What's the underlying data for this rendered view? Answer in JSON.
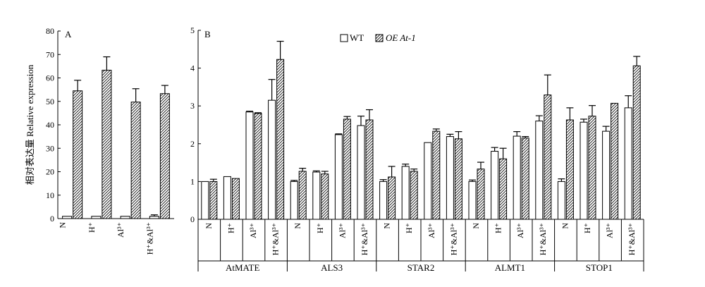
{
  "y_axis_label": "相对表达量 Relative expression",
  "legend": {
    "wt": "WT",
    "oe": "OE At-1"
  },
  "colors": {
    "wt_fill": "#ffffff",
    "oe_hatch": "#000000",
    "axis": "#000000"
  },
  "chart_data": [
    {
      "type": "bar",
      "panel_label": "A",
      "ylim": [
        0,
        80
      ],
      "yticks": [
        "0",
        "10",
        "20",
        "30",
        "40",
        "50",
        "60",
        "70",
        "80"
      ],
      "categories": [
        "N",
        "H⁺",
        "Al³⁺",
        "H⁺&Al³⁺"
      ],
      "series": [
        {
          "name": "WT",
          "values": [
            1,
            1,
            1,
            1
          ],
          "errors": [
            0,
            0,
            0,
            0.6
          ]
        },
        {
          "name": "OE At-1",
          "values": [
            54.5,
            63.3,
            49.7,
            53.3
          ],
          "errors": [
            4.5,
            5.7,
            5.7,
            3.5
          ]
        }
      ],
      "ylabel": "相对表达量 Relative expression",
      "grid": false
    },
    {
      "type": "bar",
      "panel_label": "B",
      "ylim": [
        0,
        5
      ],
      "yticks": [
        "0",
        "1",
        "2",
        "3",
        "4",
        "5"
      ],
      "groups": [
        "AtMATE",
        "ALS3",
        "STAR2",
        "ALMT1",
        "STOP1"
      ],
      "categories": [
        "N",
        "H⁺",
        "Al³⁺",
        "H⁺&Al³⁺"
      ],
      "series": [
        {
          "name": "WT",
          "values": [
            [
              1.0,
              1.13,
              2.84,
              3.15
            ],
            [
              1.0,
              1.25,
              2.24,
              2.48
            ],
            [
              1.0,
              1.4,
              2.03,
              2.19
            ],
            [
              1.0,
              1.8,
              2.2,
              2.6
            ],
            [
              1.0,
              2.57,
              2.33,
              2.95
            ]
          ],
          "errors": [
            [
              0,
              0,
              0.02,
              0.55
            ],
            [
              0.03,
              0.03,
              0.02,
              0.25
            ],
            [
              0.05,
              0.06,
              0,
              0.06
            ],
            [
              0.04,
              0.1,
              0.12,
              0.14
            ],
            [
              0.07,
              0.08,
              0.13,
              0.32
            ]
          ]
        },
        {
          "name": "OE At-1",
          "values": [
            [
              1.0,
              1.08,
              2.8,
              4.23
            ],
            [
              1.27,
              1.2,
              2.65,
              2.63
            ],
            [
              1.12,
              1.27,
              2.33,
              2.13
            ],
            [
              1.33,
              1.6,
              2.15,
              3.29
            ],
            [
              2.63,
              2.73,
              3.07,
              4.06
            ]
          ],
          "errors": [
            [
              0.06,
              0,
              0.02,
              0.48
            ],
            [
              0.08,
              0.07,
              0.07,
              0.27
            ],
            [
              0.28,
              0.06,
              0.06,
              0.19
            ],
            [
              0.18,
              0.28,
              0.04,
              0.53
            ],
            [
              0.32,
              0.28,
              0,
              0.25
            ]
          ]
        }
      ],
      "legend": "top-center",
      "grid": false
    }
  ]
}
